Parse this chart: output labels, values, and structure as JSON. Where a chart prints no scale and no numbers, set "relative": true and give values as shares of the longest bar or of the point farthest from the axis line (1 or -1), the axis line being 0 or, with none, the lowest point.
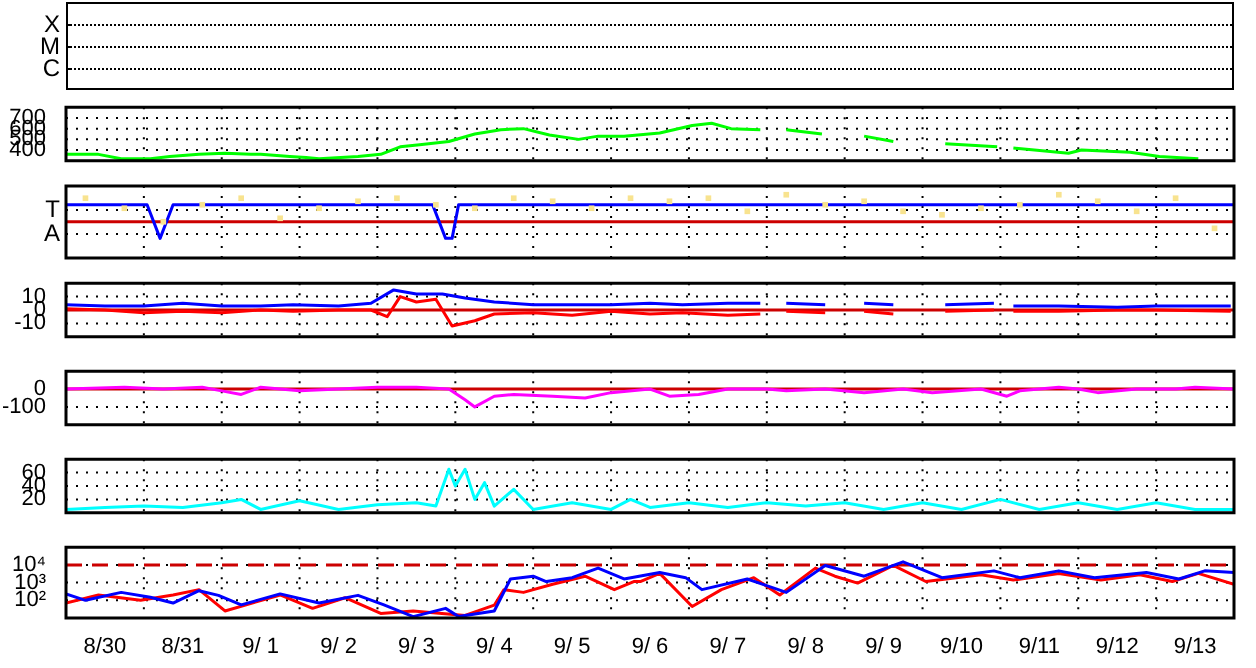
{
  "chart_data": [
    {
      "type": "other",
      "annotations": [
        "X",
        "M",
        "C"
      ]
    },
    {
      "type": "line",
      "xlim": [
        "--08-30",
        "--09-14"
      ],
      "xticks": [
        {
          "value": "--08-31",
          "label": null
        },
        {
          "value": "--09-01",
          "label": null
        },
        {
          "value": "--09-02",
          "label": null
        },
        {
          "value": "--09-03",
          "label": null
        },
        {
          "value": "--09-04",
          "label": null
        },
        {
          "value": "--09-05",
          "label": null
        },
        {
          "value": "--09-06",
          "label": null
        },
        {
          "value": "--09-07",
          "label": null
        },
        {
          "value": "--09-08",
          "label": null
        },
        {
          "value": "--09-09",
          "label": null
        },
        {
          "value": "--09-10",
          "label": null
        },
        {
          "value": "--09-11",
          "label": null
        },
        {
          "value": "--09-12",
          "label": null
        },
        {
          "value": "--09-13",
          "label": null
        }
      ],
      "ylim": [
        300,
        800
      ],
      "yticks": [
        400,
        500,
        600,
        700
      ],
      "grid": true,
      "tick_labels": "y",
      "series": [
        {
          "color": "#00ff00",
          "x": [
            "--08-30T00:00",
            "--08-30T10:00",
            "--08-30T17:00",
            "--08-31T02:00",
            "--08-31T08:00",
            "--08-31T17:00",
            "--09-01T01:00",
            "--09-01T09:00",
            "--09-01T12:00",
            "--09-01T21:00",
            "--09-02T02:00",
            "--09-02T06:00",
            "--09-02T18:00",
            "--09-03T01:00",
            "--09-03T07:00",
            "--09-03T13:00",
            "--09-03T22:00",
            "--09-04T06:00",
            "--09-04T14:00",
            "--09-04T21:00",
            "--09-05T05:00",
            "--09-05T14:00",
            "--09-05T20:00",
            "--09-06T04:00",
            "--09-06T15:00",
            "--09-07T01:00",
            "--09-07T07:00",
            "--09-07T13:00",
            "--09-07T22:00",
            "--09-07T23:00",
            "--09-08T06:00",
            "--09-08T17:00",
            "--09-08T20:00",
            "--09-09T06:00",
            "--09-09T15:00",
            "--09-09T18:00",
            "--09-10T07:00",
            "--09-10T23:00",
            "--09-11T02:00",
            "--09-11T04:00",
            "--09-11T21:00",
            "--09-12T01:00",
            "--09-12T16:00",
            "--09-13T01:00",
            "--09-13T13:00"
          ],
          "values": [
            360,
            360,
            320,
            320,
            340,
            360,
            370,
            360,
            360,
            340,
            330,
            320,
            340,
            360,
            430,
            450,
            480,
            550,
            590,
            600,
            540,
            500,
            530,
            530,
            560,
            630,
            650,
            600,
            590,
            null,
            590,
            550,
            null,
            530,
            480,
            null,
            460,
            430,
            null,
            420,
            370,
            400,
            380,
            340,
            320
          ]
        }
      ]
    },
    {
      "type": "line",
      "relative": true,
      "xlim": [
        "--08-30",
        "--09-14"
      ],
      "xticks": [
        {
          "value": "--08-31",
          "label": null
        },
        {
          "value": "--09-01",
          "label": null
        },
        {
          "value": "--09-02",
          "label": null
        },
        {
          "value": "--09-03",
          "label": null
        },
        {
          "value": "--09-04",
          "label": null
        },
        {
          "value": "--09-05",
          "label": null
        },
        {
          "value": "--09-06",
          "label": null
        },
        {
          "value": "--09-07",
          "label": null
        },
        {
          "value": "--09-08",
          "label": null
        },
        {
          "value": "--09-09",
          "label": null
        },
        {
          "value": "--09-10",
          "label": null
        },
        {
          "value": "--09-11",
          "label": null
        },
        {
          "value": "--09-12",
          "label": null
        },
        {
          "value": "--09-13",
          "label": null
        }
      ],
      "grid": true,
      "tick_labels": "y",
      "annotations": [
        "T",
        "A"
      ],
      "ref_lines": [
        {
          "axis": "y",
          "value": 0.38,
          "color": "#cc0000"
        }
      ],
      "series": [
        {
          "type": "scatter",
          "marker": "square",
          "color": "#f8e38f",
          "x": [
            "--08-30T06:00",
            "--08-30T18:00",
            "--08-31T06:00",
            "--08-31T18:00",
            "--09-01T06:00",
            "--09-01T18:00",
            "--09-02T06:00",
            "--09-02T18:00",
            "--09-03T06:00",
            "--09-03T18:00",
            "--09-04T06:00",
            "--09-04T18:00",
            "--09-05T06:00",
            "--09-05T18:00",
            "--09-06T06:00",
            "--09-06T18:00",
            "--09-07T06:00",
            "--09-07T18:00",
            "--09-08T06:00",
            "--09-08T18:00",
            "--09-09T06:00",
            "--09-09T18:00",
            "--09-10T06:00",
            "--09-10T18:00",
            "--09-11T06:00",
            "--09-11T18:00",
            "--09-12T06:00",
            "--09-12T18:00",
            "--09-13T06:00",
            "--09-13T18:00"
          ],
          "values": [
            0.92,
            0.69,
            0.38,
            0.77,
            0.92,
            0.46,
            0.69,
            0.85,
            0.92,
            0.77,
            0.69,
            0.92,
            0.85,
            0.69,
            0.92,
            0.85,
            0.92,
            0.62,
            1,
            0.77,
            0.85,
            0.62,
            0.54,
            0.69,
            0.77,
            1,
            0.85,
            0.62,
            0.92,
            0.23
          ]
        },
        {
          "color": "#0000ff",
          "x": [
            "--08-30T00:00",
            "--08-31T01:00",
            "--08-31T05:00",
            "--08-31T09:00",
            "--09-03T17:00",
            "--09-03T21:00",
            "--09-03T23:00",
            "--09-04T01:00",
            "--09-14T00:00"
          ],
          "values": [
            0.77,
            0.77,
            0,
            0.77,
            0.77,
            0,
            0,
            0.77,
            0.77
          ]
        }
      ]
    },
    {
      "type": "line",
      "xlim": [
        "--08-30",
        "--09-14"
      ],
      "xticks": [
        {
          "value": "--08-31",
          "label": null
        },
        {
          "value": "--09-01",
          "label": null
        },
        {
          "value": "--09-02",
          "label": null
        },
        {
          "value": "--09-03",
          "label": null
        },
        {
          "value": "--09-04",
          "label": null
        },
        {
          "value": "--09-05",
          "label": null
        },
        {
          "value": "--09-06",
          "label": null
        },
        {
          "value": "--09-07",
          "label": null
        },
        {
          "value": "--09-08",
          "label": null
        },
        {
          "value": "--09-09",
          "label": null
        },
        {
          "value": "--09-10",
          "label": null
        },
        {
          "value": "--09-11",
          "label": null
        },
        {
          "value": "--09-12",
          "label": null
        },
        {
          "value": "--09-13",
          "label": null
        }
      ],
      "ylim": [
        -20,
        20
      ],
      "yticks": [
        10,
        0,
        -10
      ],
      "grid": true,
      "tick_labels": "y",
      "ref_lines": [
        {
          "axis": "y",
          "value": 0,
          "color": "#cc0000"
        }
      ],
      "series": [
        {
          "color": "#0000ff",
          "x": [
            "--08-30T00:00",
            "--08-30T12:00",
            "--08-31T00:00",
            "--08-31T12:00",
            "--09-01T00:00",
            "--09-01T12:00",
            "--09-01T22:00",
            "--09-02T12:00",
            "--09-02T22:00",
            "--09-03T05:00",
            "--09-03T12:00",
            "--09-03T20:00",
            "--09-04T03:00",
            "--09-04T12:00",
            "--09-05T00:00",
            "--09-05T12:00",
            "--09-06T00:00",
            "--09-06T12:00",
            "--09-06T22:00",
            "--09-07T12:00",
            "--09-07T22:00",
            "--09-07T23:00",
            "--09-08T06:00",
            "--09-08T18:00",
            "--09-08T20:00",
            "--09-09T06:00",
            "--09-09T15:00",
            "--09-09T18:00",
            "--09-10T07:00",
            "--09-10T22:00",
            "--09-11T02:00",
            "--09-11T04:00",
            "--09-11T18:00",
            "--09-12T12:00",
            "--09-13T00:00",
            "--09-13T23:00"
          ],
          "values": [
            4,
            3,
            3,
            5,
            3,
            3,
            4,
            3,
            5,
            15,
            12,
            12,
            9,
            6,
            4,
            4,
            4,
            5,
            4,
            5,
            5,
            null,
            5,
            4,
            null,
            5,
            4,
            null,
            4,
            5,
            null,
            3,
            3,
            2,
            3,
            3
          ]
        },
        {
          "color": "#ff0000",
          "x": [
            "--08-30T00:00",
            "--08-30T12:00",
            "--08-31T00:00",
            "--08-31T12:00",
            "--09-01T00:00",
            "--09-01T12:00",
            "--09-01T22:00",
            "--09-02T12:00",
            "--09-02T22:00",
            "--09-03T03:00",
            "--09-03T07:00",
            "--09-03T12:00",
            "--09-03T18:00",
            "--09-03T23:00",
            "--09-04T06:00",
            "--09-04T12:00",
            "--09-05T00:00",
            "--09-05T12:00",
            "--09-06T00:00",
            "--09-06T12:00",
            "--09-06T22:00",
            "--09-07T12:00",
            "--09-07T22:00",
            "--09-07T23:00",
            "--09-08T06:00",
            "--09-08T18:00",
            "--09-08T20:00",
            "--09-09T06:00",
            "--09-09T15:00",
            "--09-09T18:00",
            "--09-10T07:00",
            "--09-10T22:00",
            "--09-11T02:00",
            "--09-11T04:00",
            "--09-11T18:00",
            "--09-12T12:00",
            "--09-13T00:00",
            "--09-13T23:00"
          ],
          "values": [
            1,
            0,
            -2,
            -1,
            -2,
            0,
            -1,
            0,
            0,
            -5,
            10,
            6,
            8,
            -12,
            -8,
            -3,
            -2,
            -4,
            -1,
            -3,
            -2,
            -4,
            -3,
            null,
            -1,
            -2,
            null,
            -1,
            -3,
            null,
            -1,
            0,
            null,
            -1,
            -1,
            0,
            0,
            -1
          ]
        }
      ]
    },
    {
      "type": "line",
      "xlim": [
        "--08-30",
        "--09-14"
      ],
      "xticks": [
        {
          "value": "--08-31",
          "label": null
        },
        {
          "value": "--09-01",
          "label": null
        },
        {
          "value": "--09-02",
          "label": null
        },
        {
          "value": "--09-03",
          "label": null
        },
        {
          "value": "--09-04",
          "label": null
        },
        {
          "value": "--09-05",
          "label": null
        },
        {
          "value": "--09-06",
          "label": null
        },
        {
          "value": "--09-07",
          "label": null
        },
        {
          "value": "--09-08",
          "label": null
        },
        {
          "value": "--09-09",
          "label": null
        },
        {
          "value": "--09-10",
          "label": null
        },
        {
          "value": "--09-11",
          "label": null
        },
        {
          "value": "--09-12",
          "label": null
        },
        {
          "value": "--09-13",
          "label": null
        }
      ],
      "ylim": [
        -200,
        100
      ],
      "yticks": [
        0,
        -100
      ],
      "grid": true,
      "tick_labels": "y",
      "ref_lines": [
        {
          "axis": "y",
          "value": 0,
          "color": "#cc0000"
        }
      ],
      "series": [
        {
          "color": "#ff00ff",
          "x": [
            "--08-30T00:00",
            "--08-30T18:00",
            "--08-31T06:00",
            "--08-31T18:00",
            "--09-01T00:00",
            "--09-01T06:00",
            "--09-01T12:00",
            "--09-02T00:00",
            "--09-02T12:00",
            "--09-03T00:00",
            "--09-03T12:00",
            "--09-03T22:00",
            "--09-04T03:00",
            "--09-04T06:00",
            "--09-04T12:00",
            "--09-04T18:00",
            "--09-05T06:00",
            "--09-05T16:00",
            "--09-06T00:00",
            "--09-06T12:00",
            "--09-06T18:00",
            "--09-07T03:00",
            "--09-07T12:00",
            "--09-08T00:00",
            "--09-08T06:00",
            "--09-08T18:00",
            "--09-09T06:00",
            "--09-09T18:00",
            "--09-10T03:00",
            "--09-10T18:00",
            "--09-11T02:00",
            "--09-11T06:00",
            "--09-11T18:00",
            "--09-12T00:00",
            "--09-12T06:00",
            "--09-12T18:00",
            "--09-13T06:00",
            "--09-13T12:00",
            "--09-14T00:00"
          ],
          "values": [
            0,
            10,
            0,
            10,
            -10,
            -30,
            10,
            -10,
            0,
            10,
            10,
            0,
            -60,
            -100,
            -40,
            -30,
            -40,
            -50,
            -20,
            0,
            -40,
            -30,
            0,
            0,
            -10,
            0,
            -20,
            0,
            -20,
            0,
            -40,
            -10,
            10,
            0,
            -20,
            0,
            0,
            10,
            0
          ]
        }
      ]
    },
    {
      "type": "line",
      "xlim": [
        "--08-30",
        "--09-14"
      ],
      "xticks": [
        {
          "value": "--08-31",
          "label": null
        },
        {
          "value": "--09-01",
          "label": null
        },
        {
          "value": "--09-02",
          "label": null
        },
        {
          "value": "--09-03",
          "label": null
        },
        {
          "value": "--09-04",
          "label": null
        },
        {
          "value": "--09-05",
          "label": null
        },
        {
          "value": "--09-06",
          "label": null
        },
        {
          "value": "--09-07",
          "label": null
        },
        {
          "value": "--09-08",
          "label": null
        },
        {
          "value": "--09-09",
          "label": null
        },
        {
          "value": "--09-10",
          "label": null
        },
        {
          "value": "--09-11",
          "label": null
        },
        {
          "value": "--09-12",
          "label": null
        },
        {
          "value": "--09-13",
          "label": null
        }
      ],
      "ylim": [
        0,
        80
      ],
      "yticks": [
        60,
        40,
        20
      ],
      "grid": true,
      "tick_labels": "y",
      "series": [
        {
          "color": "#00ffff",
          "x": [
            "--08-30T00:00",
            "--08-30T12:00",
            "--08-31T00:00",
            "--08-31T12:00",
            "--09-01T00:00",
            "--09-01T06:00",
            "--09-01T12:00",
            "--09-02T00:00",
            "--09-02T12:00",
            "--09-03T00:00",
            "--09-03T12:00",
            "--09-03T18:00",
            "--09-03T22:00",
            "--09-04T00:00",
            "--09-04T03:00",
            "--09-04T06:00",
            "--09-04T09:00",
            "--09-04T12:00",
            "--09-04T18:00",
            "--09-05T00:00",
            "--09-05T12:00",
            "--09-06T00:00",
            "--09-06T06:00",
            "--09-06T12:00",
            "--09-07T00:00",
            "--09-07T12:00",
            "--09-08T00:00",
            "--09-08T12:00",
            "--09-09T00:00",
            "--09-09T12:00",
            "--09-10T00:00",
            "--09-10T12:00",
            "--09-11T00:00",
            "--09-11T12:00",
            "--09-12T00:00",
            "--09-12T12:00",
            "--09-13T00:00",
            "--09-13T12:00",
            "--09-14T00:00"
          ],
          "values": [
            5,
            8,
            10,
            8,
            15,
            20,
            5,
            18,
            5,
            12,
            15,
            10,
            65,
            40,
            65,
            20,
            45,
            10,
            35,
            5,
            15,
            5,
            20,
            8,
            15,
            8,
            15,
            10,
            15,
            5,
            15,
            5,
            20,
            5,
            15,
            5,
            15,
            5,
            5
          ]
        }
      ]
    },
    {
      "type": "line",
      "xlim": [
        "--08-30",
        "--09-14"
      ],
      "xticks": [
        {
          "value": "--08-30T12:00",
          "label": "8/30"
        },
        {
          "value": "--08-31",
          "label": null
        },
        {
          "value": "--08-31T12:00",
          "label": "8/31"
        },
        {
          "value": "--09-01",
          "label": null
        },
        {
          "value": "--09-01T12:00",
          "label": "9/ 1"
        },
        {
          "value": "--09-02",
          "label": null
        },
        {
          "value": "--09-02T12:00",
          "label": "9/ 2"
        },
        {
          "value": "--09-03",
          "label": null
        },
        {
          "value": "--09-03T12:00",
          "label": "9/ 3"
        },
        {
          "value": "--09-04",
          "label": null
        },
        {
          "value": "--09-04T12:00",
          "label": "9/ 4"
        },
        {
          "value": "--09-05",
          "label": null
        },
        {
          "value": "--09-05T12:00",
          "label": "9/ 5"
        },
        {
          "value": "--09-06",
          "label": null
        },
        {
          "value": "--09-06T12:00",
          "label": "9/ 6"
        },
        {
          "value": "--09-07",
          "label": null
        },
        {
          "value": "--09-07T12:00",
          "label": "9/ 7"
        },
        {
          "value": "--09-08",
          "label": null
        },
        {
          "value": "--09-08T12:00",
          "label": "9/ 8"
        },
        {
          "value": "--09-09",
          "label": null
        },
        {
          "value": "--09-09T12:00",
          "label": "9/ 9"
        },
        {
          "value": "--09-10",
          "label": null
        },
        {
          "value": "--09-10T12:00",
          "label": "9/10"
        },
        {
          "value": "--09-11",
          "label": null
        },
        {
          "value": "--09-11T12:00",
          "label": "9/11"
        },
        {
          "value": "--09-12",
          "label": null
        },
        {
          "value": "--09-12T12:00",
          "label": "9/12"
        },
        {
          "value": "--09-13",
          "label": null
        },
        {
          "value": "--09-13T12:00",
          "label": "9/13"
        }
      ],
      "log": true,
      "ylim": [
        10,
        100000
      ],
      "yticks": [
        {
          "value": 10000,
          "label": "10⁴"
        },
        {
          "value": 1000,
          "label": "10³"
        },
        {
          "value": 100,
          "label": "10²"
        }
      ],
      "grid": true,
      "ref_lines": [
        {
          "axis": "y",
          "value": 10000,
          "color": "#cc0000",
          "line_style": "dashed"
        }
      ],
      "series": [
        {
          "color": "#0000ff",
          "x": [
            "--08-30T00:00",
            "--08-30T06:00",
            "--08-30T17:00",
            "--08-31T02:00",
            "--08-31T09:00",
            "--08-31T17:00",
            "--08-31T23:00",
            "--09-01T06:00",
            "--09-01T18:00",
            "--09-02T06:00",
            "--09-02T18:00",
            "--09-03T02:00",
            "--09-03T11:00",
            "--09-03T21:00",
            "--09-04T01:00",
            "--09-04T12:00",
            "--09-04T17:00",
            "--09-05T00:00",
            "--09-05T04:00",
            "--09-05T12:00",
            "--09-05T20:00",
            "--09-06T04:00",
            "--09-06T15:00",
            "--09-06T23:00",
            "--09-07T04:00",
            "--09-07T18:00",
            "--09-08T06:00",
            "--09-08T18:00",
            "--09-09T06:00",
            "--09-09T18:00",
            "--09-10T06:00",
            "--09-10T22:00",
            "--09-11T06:00",
            "--09-11T18:00",
            "--09-12T05:00",
            "--09-12T21:00",
            "--09-13T07:00",
            "--09-13T15:00",
            "--09-14T00:00"
          ],
          "values": [
            230,
            100,
            280,
            150,
            70,
            350,
            190,
            55,
            230,
            70,
            190,
            55,
            12,
            35,
            12,
            25,
            1600,
            2300,
            1150,
            1900,
            6600,
            1600,
            3700,
            1900,
            400,
            1600,
            280,
            9300,
            2300,
            15000,
            1900,
            4600,
            1900,
            4600,
            1900,
            3700,
            1600,
            4600,
            3700
          ]
        },
        {
          "color": "#ff0000",
          "x": [
            "--08-30T00:00",
            "--08-30T10:00",
            "--08-30T23:00",
            "--08-31T09:00",
            "--08-31T17:00",
            "--09-01T01:00",
            "--09-01T18:00",
            "--09-02T04:00",
            "--09-02T14:00",
            "--09-03T01:00",
            "--09-03T11:00",
            "--09-04T03:00",
            "--09-04T12:00",
            "--09-04T15:00",
            "--09-04T21:00",
            "--09-05T06:00",
            "--09-05T16:00",
            "--09-06T01:00",
            "--09-06T07:00",
            "--09-06T09:00",
            "--09-06T15:00",
            "--09-07T01:00",
            "--09-07T10:00",
            "--09-07T20:00",
            "--09-08T04:00",
            "--09-08T15:00",
            "--09-08T21:00",
            "--09-09T04:00",
            "--09-09T15:00",
            "--09-10T01:00",
            "--09-10T18:00",
            "--09-11T04:00",
            "--09-11T18:00",
            "--09-12T07:00",
            "--09-12T19:00",
            "--09-13T05:00",
            "--09-13T13:00",
            "--09-14T00:00"
          ],
          "values": [
            70,
            200,
            100,
            200,
            400,
            25,
            200,
            35,
            140,
            18,
            25,
            14,
            53,
            400,
            280,
            800,
            2300,
            400,
            1150,
            1150,
            3300,
            45,
            400,
            1900,
            200,
            6600,
            2300,
            940,
            9300,
            1150,
            2800,
            1400,
            3300,
            1400,
            2800,
            1150,
            3300,
            800
          ]
        }
      ]
    }
  ]
}
